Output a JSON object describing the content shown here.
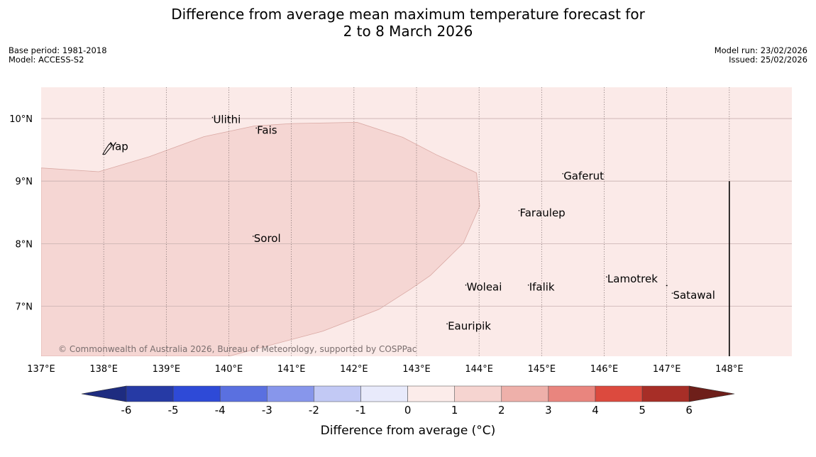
{
  "title_line1": "Difference from average mean maximum temperature forecast for",
  "title_line2": "2 to 8 March 2026",
  "meta_left": {
    "base_period": "Base period: 1981-2018",
    "model": "Model: ACCESS-S2"
  },
  "meta_right": {
    "model_run": "Model run: 23/02/2026",
    "issued": "Issued: 25/02/2026"
  },
  "copyright": "© Commonwealth of Australia 2026, Bureau of Meteorology, supported by COSPPac",
  "map": {
    "lon_range": [
      137,
      149
    ],
    "lat_range": [
      6.2,
      10.5
    ],
    "background_anomaly_class": "0 to 1",
    "background_color": "#fbeae8",
    "anomaly_region": {
      "class": "1 to 2",
      "color": "#f5d6d3"
    },
    "lat_ticks": [
      "10°N",
      "9°N",
      "8°N",
      "7°N"
    ],
    "lat_values": [
      10,
      9,
      8,
      7
    ],
    "lon_ticks": [
      "137°E",
      "138°E",
      "139°E",
      "140°E",
      "141°E",
      "142°E",
      "143°E",
      "144°E",
      "145°E",
      "146°E",
      "147°E",
      "148°E"
    ],
    "lon_values": [
      137,
      138,
      139,
      140,
      141,
      142,
      143,
      144,
      145,
      146,
      147,
      148
    ],
    "places": [
      {
        "name": "Ulithi",
        "lon": 139.75,
        "lat": 9.95
      },
      {
        "name": "Fais",
        "lon": 140.45,
        "lat": 9.78
      },
      {
        "name": "Yap",
        "lon": 138.1,
        "lat": 9.52
      },
      {
        "name": "Gaferut",
        "lon": 145.35,
        "lat": 9.05
      },
      {
        "name": "Faraulep",
        "lon": 144.65,
        "lat": 8.46
      },
      {
        "name": "Sorol",
        "lon": 140.4,
        "lat": 8.05
      },
      {
        "name": "Lamotrek",
        "lon": 146.05,
        "lat": 7.4
      },
      {
        "name": "Woleai",
        "lon": 143.8,
        "lat": 7.27
      },
      {
        "name": "Ifalik",
        "lon": 144.8,
        "lat": 7.27
      },
      {
        "name": "Satawal",
        "lon": 147.1,
        "lat": 7.14
      },
      {
        "name": "Eauripik",
        "lon": 143.5,
        "lat": 6.65
      }
    ]
  },
  "colorbar": {
    "label": "Difference from average (°C)",
    "ticks": [
      "-6",
      "-5",
      "-4",
      "-3",
      "-2",
      "-1",
      "0",
      "1",
      "2",
      "3",
      "4",
      "5",
      "6"
    ],
    "colors": [
      "#263aa5",
      "#2e4ad7",
      "#5a70e0",
      "#8796eb",
      "#c2c9f5",
      "#e8eafb",
      "#fcecea",
      "#f6d4d0",
      "#eeb0aa",
      "#e9857e",
      "#dc4a3e",
      "#a72e27"
    ],
    "under_color": "#1e2c80",
    "over_color": "#6e1f1a"
  }
}
